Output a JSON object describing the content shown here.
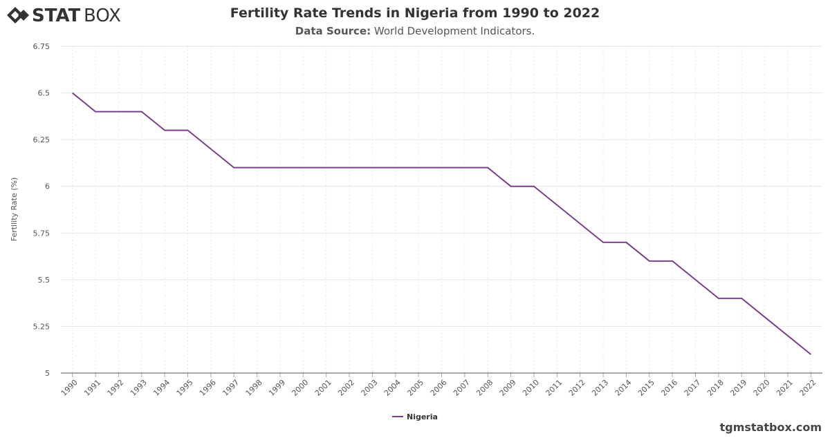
{
  "logo": {
    "bold": "STAT",
    "light": "BOX"
  },
  "chart_data": {
    "type": "line",
    "title": "Fertility Rate Trends in Nigeria from 1990 to 2022",
    "subtitle_label": "Data Source:",
    "subtitle": "World Development Indicators.",
    "y_label": "Fertility Rate (%)",
    "x": [
      1990,
      1991,
      1992,
      1993,
      1994,
      1995,
      1996,
      1997,
      1998,
      1999,
      2000,
      2001,
      2002,
      2003,
      2004,
      2005,
      2006,
      2007,
      2008,
      2009,
      2010,
      2011,
      2012,
      2013,
      2014,
      2015,
      2016,
      2017,
      2018,
      2019,
      2020,
      2021,
      2022
    ],
    "xlim": [
      1989.5,
      2022.5
    ],
    "series": [
      {
        "name": "Nigeria",
        "color": "#7a3e8e",
        "values": [
          6.5,
          6.4,
          6.4,
          6.4,
          6.3,
          6.3,
          6.2,
          6.1,
          6.1,
          6.1,
          6.1,
          6.1,
          6.1,
          6.1,
          6.1,
          6.1,
          6.1,
          6.1,
          6.1,
          6.0,
          6.0,
          5.9,
          5.8,
          5.7,
          5.7,
          5.6,
          5.6,
          5.5,
          5.4,
          5.4,
          5.3,
          5.2,
          5.1
        ]
      }
    ],
    "ylim": [
      5,
      6.75
    ],
    "yticks": [
      5,
      5.25,
      5.5,
      5.75,
      6,
      6.25,
      6.5,
      6.75
    ],
    "grid": true,
    "watermark": "tgmstatbox.com"
  }
}
